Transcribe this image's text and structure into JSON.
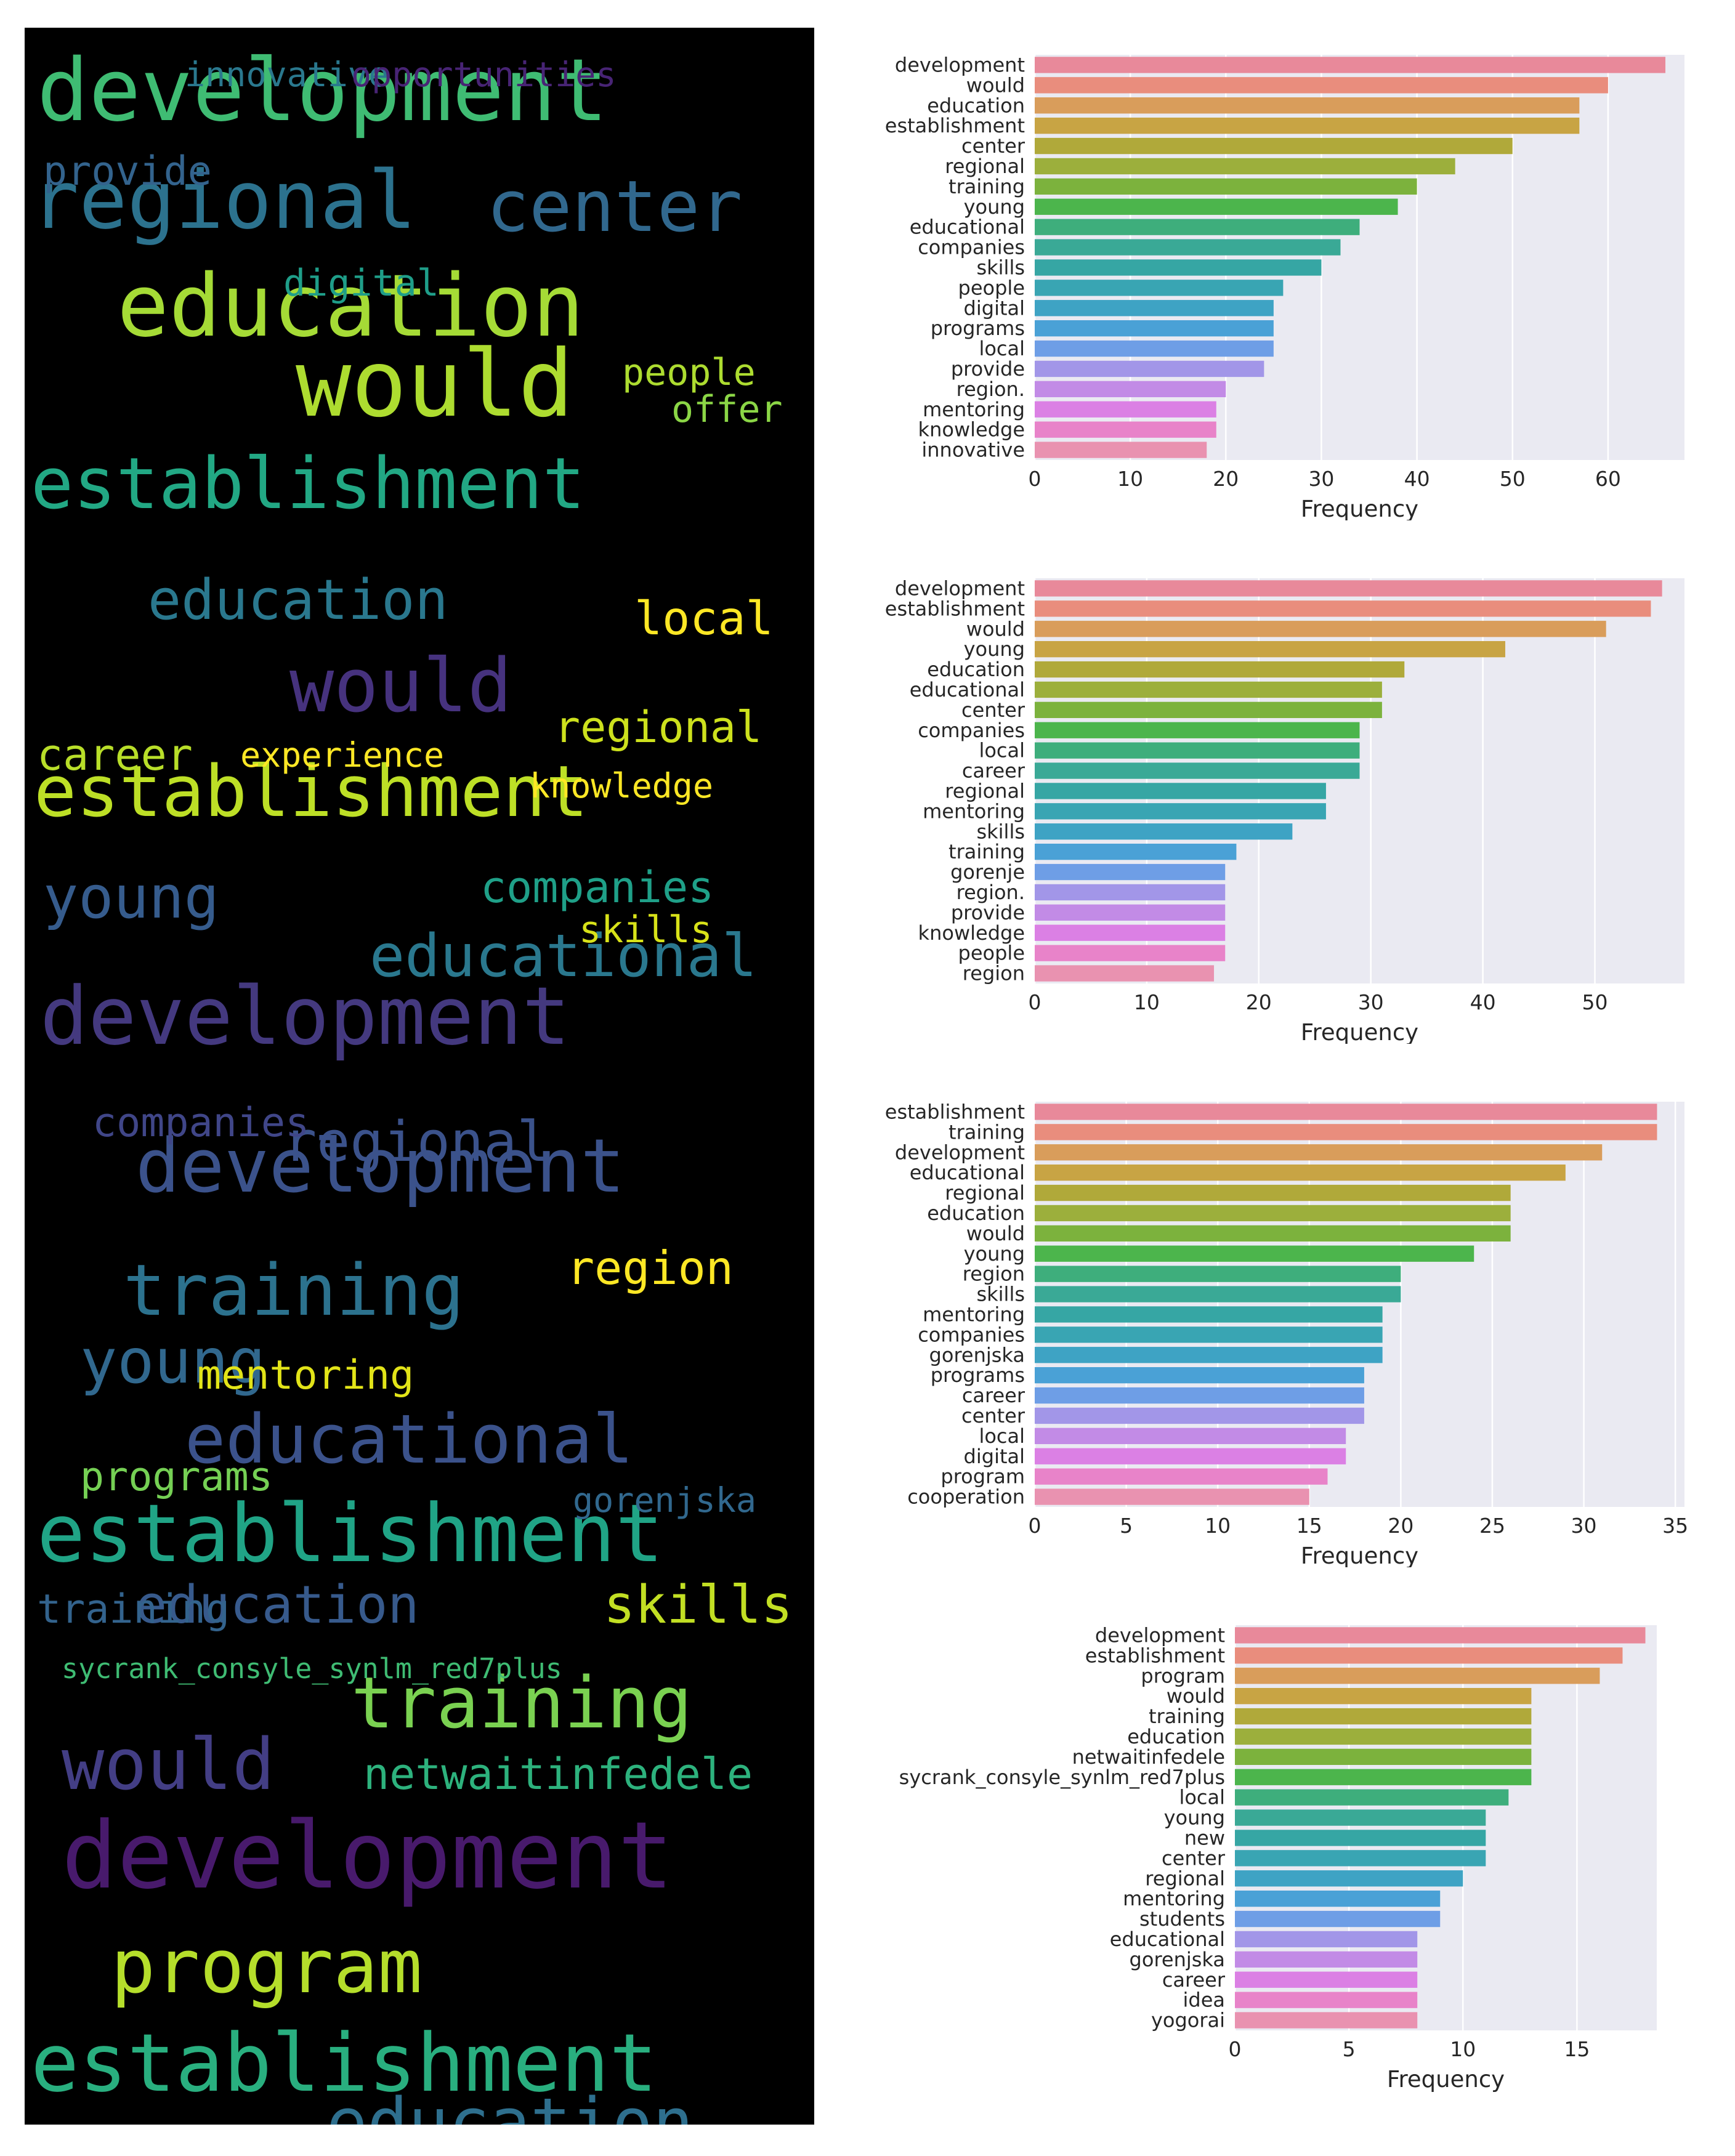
{
  "wordcloud": {
    "background": "#000000",
    "words": [
      {
        "text": "development",
        "color": "#3fbc73"
      },
      {
        "text": "regional",
        "color": "#2c728e"
      },
      {
        "text": "center",
        "color": "#31688e"
      },
      {
        "text": "education",
        "color": "#a5db36"
      },
      {
        "text": "would",
        "color": "#addc30"
      },
      {
        "text": "establishment",
        "color": "#22a884"
      },
      {
        "text": "education",
        "color": "#2a788e"
      },
      {
        "text": "would",
        "color": "#46327e"
      },
      {
        "text": "establishment",
        "color": "#bddf26"
      },
      {
        "text": "young",
        "color": "#365c8d"
      },
      {
        "text": "educational",
        "color": "#2a788e"
      },
      {
        "text": "development",
        "color": "#44397f"
      },
      {
        "text": "development",
        "color": "#3b528b"
      },
      {
        "text": "training",
        "color": "#2c728e"
      },
      {
        "text": "young",
        "color": "#31688e"
      },
      {
        "text": "educational",
        "color": "#3b528b"
      },
      {
        "text": "establishment",
        "color": "#20a486"
      },
      {
        "text": "education",
        "color": "#375a8c"
      },
      {
        "text": "training",
        "color": "#7ad151"
      },
      {
        "text": "would",
        "color": "#433e85"
      },
      {
        "text": "netwaitinfedele",
        "color": "#2db27d"
      },
      {
        "text": "development",
        "color": "#481a6c"
      },
      {
        "text": "program",
        "color": "#b5de2b"
      },
      {
        "text": "establishment",
        "color": "#29af7f"
      },
      {
        "text": "education",
        "color": "#2e6f8e"
      },
      {
        "text": "skills",
        "color": "#c2df23"
      },
      {
        "text": "training",
        "color": "#33638d"
      },
      {
        "text": "provide",
        "color": "#33638d"
      },
      {
        "text": "digital",
        "color": "#1f9e89"
      },
      {
        "text": "people",
        "color": "#addc30"
      },
      {
        "text": "local",
        "color": "#fde725"
      },
      {
        "text": "regional",
        "color": "#cde11d"
      },
      {
        "text": "career",
        "color": "#b8de29"
      },
      {
        "text": "experience",
        "color": "#fde725"
      },
      {
        "text": "knowledge",
        "color": "#fde725"
      },
      {
        "text": "companies",
        "color": "#1fa088"
      },
      {
        "text": "mentoring",
        "color": "#e2e418"
      },
      {
        "text": "region",
        "color": "#fde725"
      },
      {
        "text": "programs",
        "color": "#75d054"
      },
      {
        "text": "skills",
        "color": "#d8e219"
      },
      {
        "text": "regional",
        "color": "#3b528b"
      },
      {
        "text": "companies",
        "color": "#404688"
      },
      {
        "text": "gorenjska",
        "color": "#31688e"
      },
      {
        "text": "innovative",
        "color": "#2a788e"
      },
      {
        "text": "opportunities",
        "color": "#482475"
      },
      {
        "text": "offer",
        "color": "#8bd646"
      },
      {
        "text": "sycrank_consyle_synlm_red7plus",
        "color": "#3fbc73"
      }
    ]
  },
  "charts": [
    {
      "xlabel": "Frequency",
      "xlim": [
        0,
        68
      ],
      "ticks": [
        0,
        10,
        20,
        30,
        40,
        50,
        60
      ],
      "chart_data": {
        "type": "bar",
        "orientation": "horizontal",
        "categories": [
          "development",
          "would",
          "education",
          "establishment",
          "center",
          "regional",
          "training",
          "young",
          "educational",
          "companies",
          "skills",
          "people",
          "digital",
          "programs",
          "local",
          "provide",
          "region.",
          "mentoring",
          "knowledge",
          "innovative"
        ],
        "values": [
          66,
          60,
          57,
          57,
          50,
          44,
          40,
          38,
          34,
          32,
          30,
          26,
          25,
          25,
          25,
          24,
          20,
          19,
          19,
          18
        ],
        "xlabel": "Frequency",
        "xlim": [
          0,
          68
        ],
        "grid": true
      }
    },
    {
      "xlabel": "Frequency",
      "xlim": [
        0,
        58
      ],
      "ticks": [
        0,
        10,
        20,
        30,
        40,
        50
      ],
      "chart_data": {
        "type": "bar",
        "orientation": "horizontal",
        "categories": [
          "development",
          "establishment",
          "would",
          "young",
          "education",
          "educational",
          "center",
          "companies",
          "local",
          "career",
          "regional",
          "mentoring",
          "skills",
          "training",
          "gorenje",
          "region.",
          "provide",
          "knowledge",
          "people",
          "region"
        ],
        "values": [
          56,
          55,
          51,
          42,
          33,
          31,
          31,
          29,
          29,
          29,
          26,
          26,
          23,
          18,
          17,
          17,
          17,
          17,
          17,
          16
        ],
        "xlabel": "Frequency",
        "xlim": [
          0,
          58
        ],
        "grid": true
      }
    },
    {
      "xlabel": "Frequency",
      "xlim": [
        0,
        35.5
      ],
      "ticks": [
        0,
        5,
        10,
        15,
        20,
        25,
        30,
        35
      ],
      "chart_data": {
        "type": "bar",
        "orientation": "horizontal",
        "categories": [
          "establishment",
          "training",
          "development",
          "educational",
          "regional",
          "education",
          "would",
          "young",
          "region",
          "skills",
          "mentoring",
          "companies",
          "gorenjska",
          "programs",
          "career",
          "center",
          "local",
          "digital",
          "program",
          "cooperation"
        ],
        "values": [
          34,
          34,
          31,
          29,
          26,
          26,
          26,
          24,
          20,
          20,
          19,
          19,
          19,
          18,
          18,
          18,
          17,
          17,
          16,
          15
        ],
        "xlabel": "Frequency",
        "xlim": [
          0,
          35.5
        ],
        "grid": true
      }
    },
    {
      "xlabel": "Frequency",
      "xlim": [
        0,
        18.5
      ],
      "ticks": [
        0,
        5,
        10,
        15
      ],
      "chart_data": {
        "type": "bar",
        "orientation": "horizontal",
        "categories": [
          "development",
          "establishment",
          "program",
          "would",
          "training",
          "education",
          "netwaitinfedele",
          "sycrank_consyle_synlm_red7plus",
          "local",
          "young",
          "new",
          "center",
          "regional",
          "mentoring",
          "students",
          "educational",
          "gorenjska",
          "career",
          "idea",
          "yogorai"
        ],
        "values": [
          18,
          17,
          16,
          13,
          13,
          13,
          13,
          13,
          12,
          11,
          11,
          11,
          10,
          9,
          9,
          8,
          8,
          8,
          8,
          8
        ],
        "xlabel": "Frequency",
        "xlim": [
          0,
          18.5
        ],
        "grid": true
      }
    }
  ],
  "palette": [
    "#e8899a",
    "#e98d7d",
    "#d99d5b",
    "#c8a444",
    "#b0a93a",
    "#9caf3c",
    "#7cb23d",
    "#4cb54c",
    "#3eae7c",
    "#3aa996",
    "#36a6a4",
    "#39a5b3",
    "#3ea3c4",
    "#4aa1d6",
    "#6e9ee6",
    "#a296e8",
    "#c28be6",
    "#db80e4",
    "#e883c9",
    "#e992b0"
  ]
}
